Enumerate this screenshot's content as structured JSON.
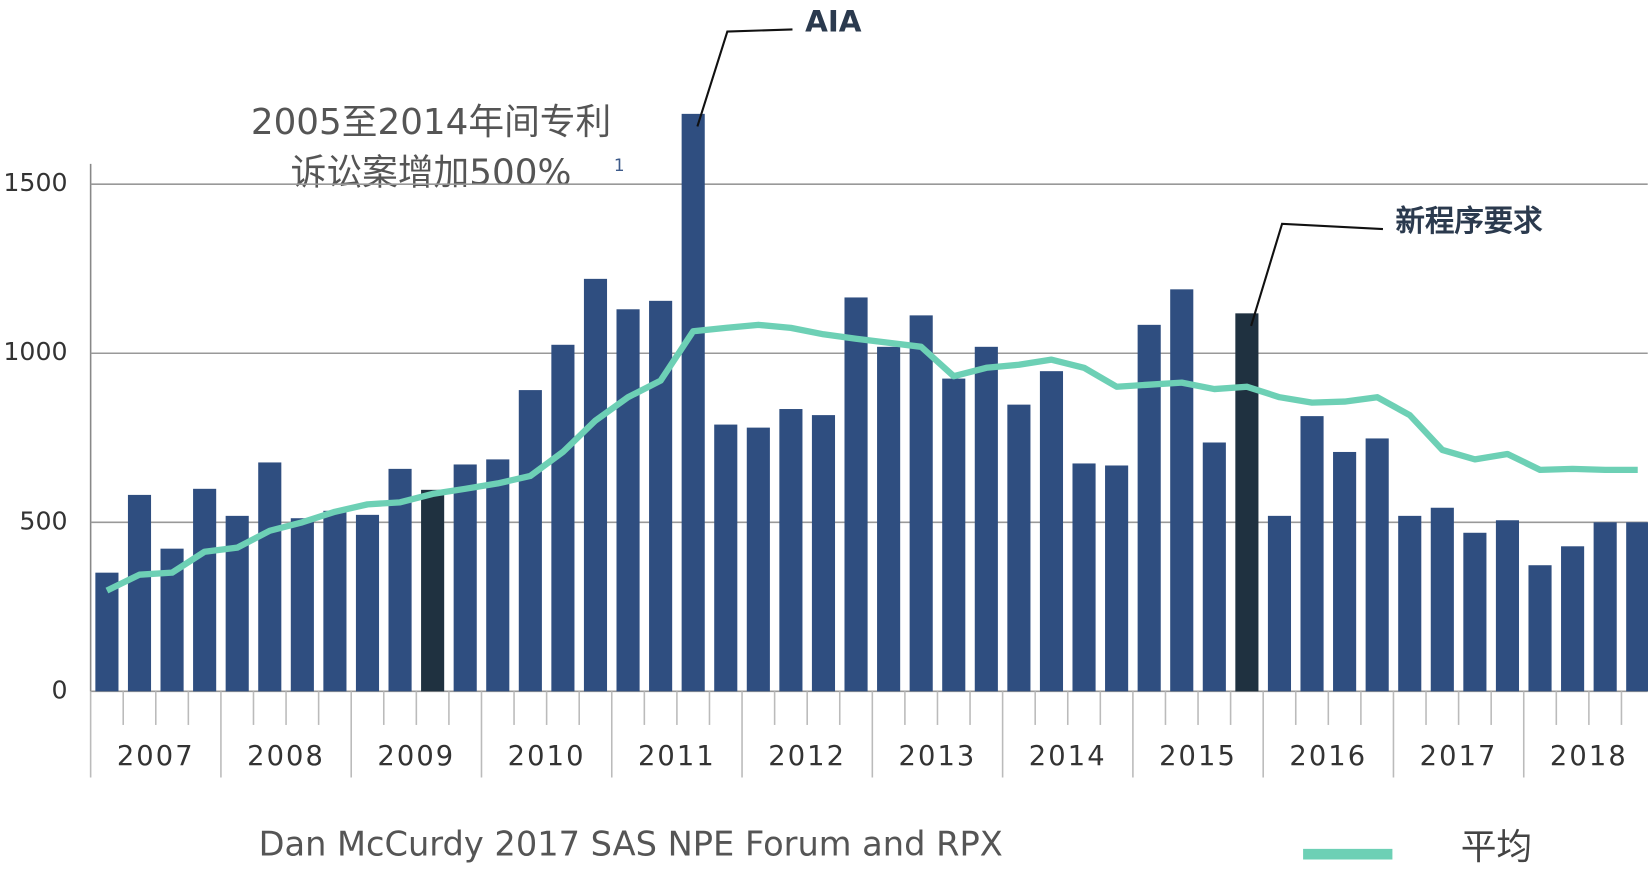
{
  "chart_data": {
    "type": "bar",
    "categories": [
      "2007",
      null,
      null,
      null,
      "2008",
      null,
      null,
      null,
      "2009",
      null,
      null,
      null,
      "2010",
      null,
      null,
      null,
      "2011",
      null,
      null,
      null,
      "2012",
      null,
      null,
      null,
      "2013",
      null,
      null,
      null,
      "2014",
      null,
      null,
      null,
      "2015",
      null,
      null,
      null,
      "2016",
      null,
      null,
      null,
      "2017",
      null,
      null,
      null,
      "2018",
      null,
      null,
      null
    ],
    "series": [
      {
        "type": "bar",
        "color": "#2f4e80",
        "highlight_color": "#1f3140",
        "highlight": [
          10,
          35
        ],
        "values": [
          351,
          581,
          422,
          599,
          519,
          677,
          512,
          534,
          522,
          658,
          596,
          671,
          686,
          891,
          1025,
          1220,
          1130,
          1155,
          1708,
          789,
          780,
          835,
          817,
          1165,
          1019,
          1112,
          925,
          1019,
          848,
          947,
          674,
          668,
          1084,
          1189,
          736,
          1118,
          519,
          814,
          708,
          748,
          519,
          543,
          469,
          506,
          373,
          429,
          500,
          500
        ]
      },
      {
        "type": "line",
        "name": "平均",
        "color": "#6dd0b5",
        "values": [
          298,
          345,
          351,
          413,
          425,
          475,
          500,
          531,
          553,
          559,
          584,
          599,
          615,
          637,
          708,
          801,
          870,
          919,
          1065,
          1075,
          1084,
          1075,
          1056,
          1043,
          1031,
          1019,
          932,
          957,
          966,
          981,
          957,
          901,
          907,
          913,
          894,
          901,
          870,
          854,
          857,
          870,
          817,
          714,
          686,
          702,
          655,
          658,
          655,
          655
        ]
      }
    ],
    "ylim": [
      0,
      1560
    ],
    "yticks": [
      0,
      500,
      1000,
      1500
    ],
    "grid": true,
    "annotations": [
      {
        "text": "AIA",
        "index": 18
      },
      {
        "text": "新程序要求",
        "index": 35
      }
    ],
    "note_lines": [
      "2005至2014年间专利",
      "诉讼案增加500%"
    ],
    "note_superscript": "1",
    "source": "Dan McCurdy 2017 SAS NPE Forum and RPX"
  }
}
